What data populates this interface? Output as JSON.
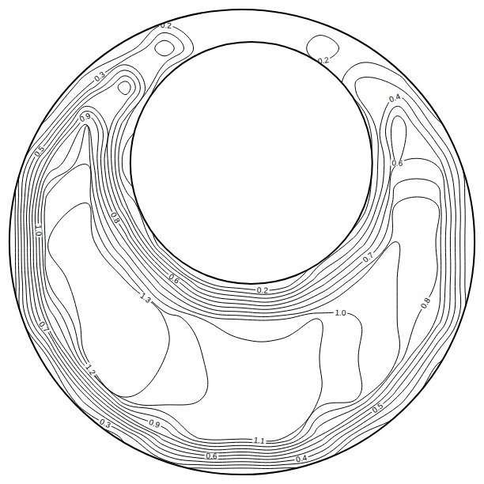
{
  "chart_data": {
    "type": "contour",
    "x": [
      -1,
      -0.833,
      -0.667,
      -0.5,
      -0.333,
      -0.167,
      0,
      0.167,
      0.333,
      0.5,
      0.667,
      0.833,
      1
    ],
    "y": [
      -1,
      -0.833,
      -0.667,
      -0.5,
      -0.333,
      -0.167,
      0,
      0.167,
      0.333,
      0.5,
      0.667,
      0.833,
      1
    ],
    "z": [
      [
        0,
        0,
        0,
        0,
        0,
        0,
        0,
        0,
        0,
        0,
        0,
        0,
        0
      ],
      [
        0,
        0,
        0,
        0.25,
        0.8,
        1.2,
        1.2,
        1.2,
        0.7,
        0.2,
        0,
        0,
        0
      ],
      [
        0,
        0,
        0.5,
        1.3,
        1.3,
        1.2,
        1.2,
        1.2,
        1.1,
        1.0,
        0.4,
        0,
        0
      ],
      [
        0,
        0.3,
        1.3,
        1.4,
        1.3,
        1.2,
        1.2,
        1.2,
        1.1,
        1.0,
        0.9,
        0.25,
        0
      ],
      [
        0,
        0.9,
        1.4,
        1.4,
        1.3,
        1.1,
        1.0,
        1.0,
        1.1,
        1.0,
        0.9,
        0.7,
        0
      ],
      [
        0,
        1.2,
        1.4,
        1.3,
        0.8,
        0.2,
        0,
        0,
        0.5,
        0.9,
        0.9,
        0.8,
        0
      ],
      [
        0,
        1.3,
        1.4,
        0.9,
        0,
        0,
        0,
        0,
        0,
        0.4,
        0.9,
        0.8,
        0
      ],
      [
        0,
        1.3,
        1.3,
        0.4,
        0,
        0,
        0,
        0,
        0,
        0,
        0.8,
        0.8,
        0
      ],
      [
        0,
        0.9,
        1.2,
        0.1,
        0,
        0,
        0,
        0,
        0,
        0,
        0.6,
        0.6,
        0
      ],
      [
        0,
        0.25,
        1.1,
        0.3,
        0,
        0,
        0,
        0,
        0,
        0,
        0.7,
        0.25,
        0
      ],
      [
        0,
        0,
        0.3,
        0.8,
        0,
        0,
        0,
        0,
        0,
        0.35,
        0.3,
        0,
        0
      ],
      [
        0,
        0,
        0,
        0.1,
        0.5,
        0.1,
        0,
        0,
        0.3,
        0.1,
        0,
        0,
        0
      ],
      [
        0,
        0,
        0,
        0,
        0,
        0,
        0,
        0,
        0,
        0,
        0,
        0,
        0
      ]
    ],
    "contour_levels": {
      "start": 0.2,
      "end": 1.4,
      "step": 0.1
    },
    "xlim": [
      -1.02,
      1.02
    ],
    "ylim": [
      -1.02,
      1.02
    ],
    "tick_labels": false,
    "grid": false,
    "color": "#000000",
    "walls": {
      "outer": {
        "center": [
          0,
          0
        ],
        "radius": 1
      },
      "inner": {
        "center": [
          0.04,
          0.34
        ],
        "radius": 0.52
      }
    }
  }
}
